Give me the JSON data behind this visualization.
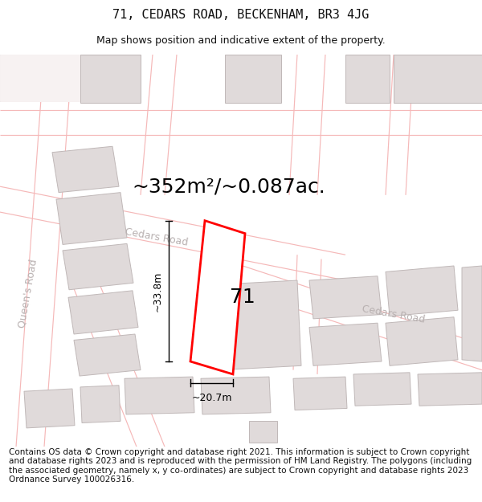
{
  "title": "71, CEDARS ROAD, BECKENHAM, BR3 4JG",
  "subtitle": "Map shows position and indicative extent of the property.",
  "area_text": "~352m²/~0.087ac.",
  "label_71": "71",
  "dim_height": "~33.8m",
  "dim_width": "~20.7m",
  "road_label_queens": "Queen's Road",
  "road_label_cedars_top": "Cedars Road",
  "road_label_cedars_right": "Cedars Road",
  "footer_text": "Contains OS data © Crown copyright and database right 2021. This information is subject to Crown copyright and database rights 2023 and is reproduced with the permission of HM Land Registry. The polygons (including the associated geometry, namely x, y co-ordinates) are subject to Crown copyright and database rights 2023 Ordnance Survey 100026316.",
  "title_fontsize": 11,
  "subtitle_fontsize": 9,
  "area_fontsize": 18,
  "label_fontsize": 18,
  "footer_fontsize": 7.5,
  "road_label_fontsize": 9,
  "dim_fontsize": 9,
  "highlight_color": "#ff0000",
  "building_fill": "#e0dada",
  "building_edge": "#c0b8b8",
  "road_line_color": "#f5b8b8",
  "dim_line_color": "#000000",
  "background_color": "#ffffff",
  "map_bg": "#f7f2f2"
}
